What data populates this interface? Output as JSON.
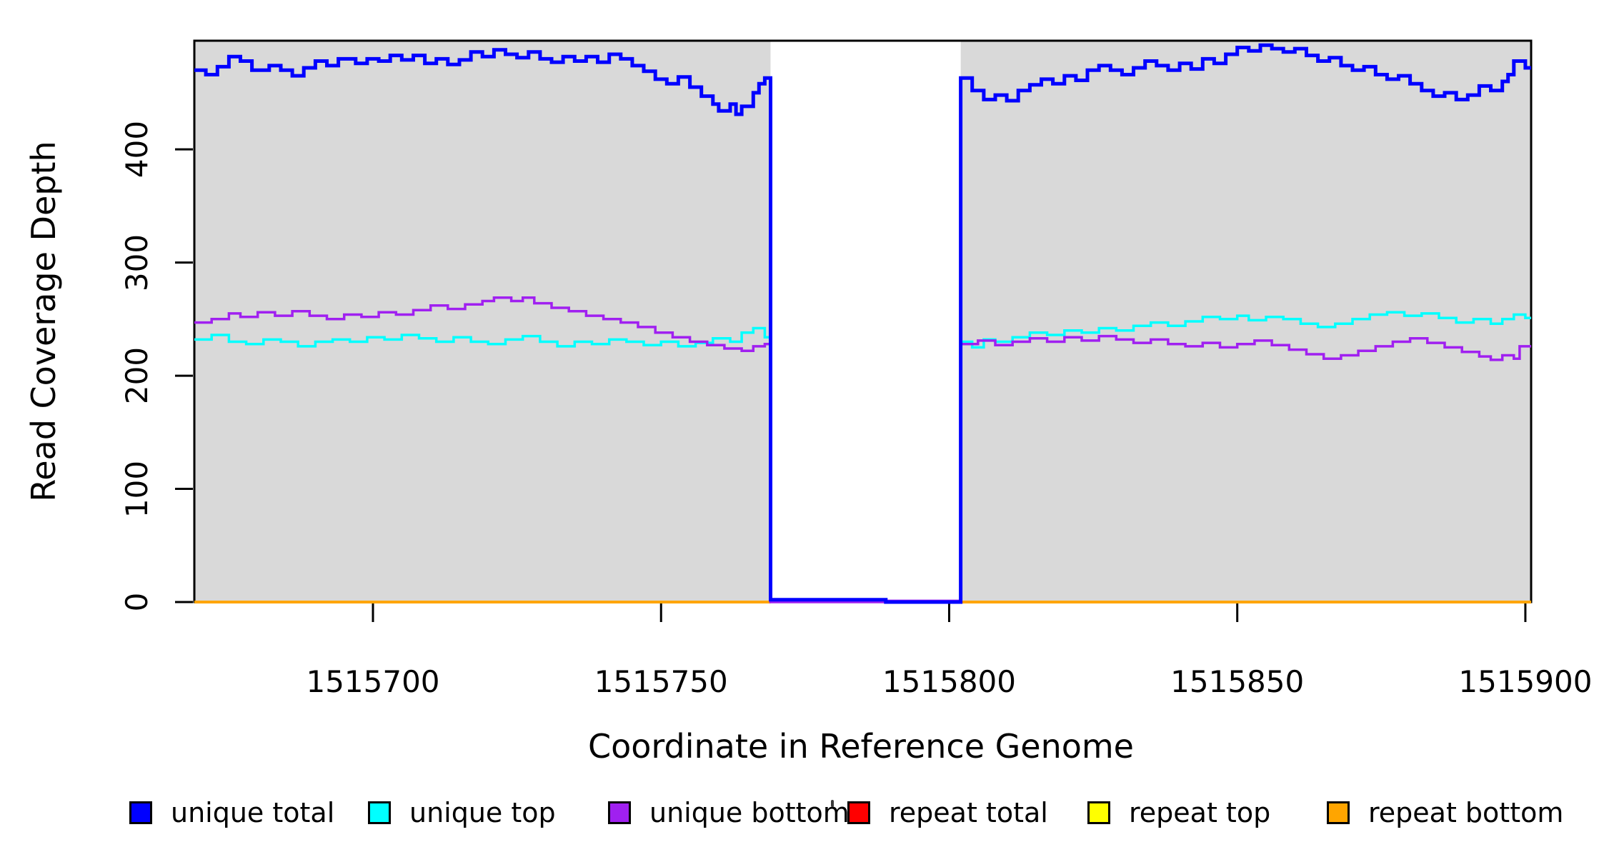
{
  "chart_data": {
    "type": "line",
    "line_style": "step",
    "title": "",
    "xlabel": "Coordinate in Reference Genome",
    "ylabel": "Read Coverage Depth",
    "xlim": [
      1515669,
      1515901
    ],
    "ylim": [
      0,
      496
    ],
    "xticks": [
      1515700,
      1515750,
      1515800,
      1515850,
      1515900
    ],
    "xtick_labels": [
      "1515700",
      "1515750",
      "1515800",
      "1515850",
      "1515900"
    ],
    "yticks": [
      0,
      100,
      200,
      300,
      400
    ],
    "ytick_labels": [
      "0",
      "100",
      "200",
      "300",
      "400"
    ],
    "grid": false,
    "legend_position": "bottom",
    "colors": {
      "panel_bg": "#d9d9d9",
      "gap_fill": "#ffffff",
      "box": "#000000",
      "unique_total": "#0000ff",
      "unique_top": "#00ffff",
      "unique_bottom": "#a020f0",
      "repeat_total": "#ff0000",
      "repeat_top": "#ffff00",
      "repeat_bottom": "#ffa500"
    },
    "panel_segments": [
      [
        1515669,
        1515769
      ],
      [
        1515802,
        1515901
      ]
    ],
    "gap": [
      1515769,
      1515802
    ],
    "legend": [
      {
        "label": "unique total",
        "color": "#0000ff"
      },
      {
        "label": "unique top",
        "color": "#00ffff"
      },
      {
        "label": "unique bottom",
        "color": "#a020f0"
      },
      {
        "label": "repeat total",
        "color": "#ff0000"
      },
      {
        "label": "repeat top",
        "color": "#ffff00"
      },
      {
        "label": "repeat bottom",
        "color": "#ffa500"
      }
    ],
    "series": [
      {
        "name": "unique total",
        "color": "#0000ff",
        "points": [
          [
            1515669,
            470
          ],
          [
            1515671,
            466
          ],
          [
            1515673,
            473
          ],
          [
            1515675,
            482
          ],
          [
            1515677,
            478
          ],
          [
            1515679,
            470
          ],
          [
            1515682,
            474
          ],
          [
            1515684,
            470
          ],
          [
            1515686,
            465
          ],
          [
            1515688,
            472
          ],
          [
            1515690,
            478
          ],
          [
            1515692,
            474
          ],
          [
            1515694,
            480
          ],
          [
            1515697,
            476
          ],
          [
            1515699,
            480
          ],
          [
            1515701,
            478
          ],
          [
            1515703,
            483
          ],
          [
            1515705,
            479
          ],
          [
            1515707,
            483
          ],
          [
            1515709,
            476
          ],
          [
            1515711,
            480
          ],
          [
            1515713,
            475
          ],
          [
            1515715,
            479
          ],
          [
            1515717,
            486
          ],
          [
            1515719,
            482
          ],
          [
            1515721,
            488
          ],
          [
            1515723,
            484
          ],
          [
            1515725,
            481
          ],
          [
            1515727,
            486
          ],
          [
            1515729,
            480
          ],
          [
            1515731,
            477
          ],
          [
            1515733,
            482
          ],
          [
            1515735,
            478
          ],
          [
            1515737,
            482
          ],
          [
            1515739,
            477
          ],
          [
            1515741,
            484
          ],
          [
            1515743,
            480
          ],
          [
            1515745,
            474
          ],
          [
            1515747,
            469
          ],
          [
            1515749,
            462
          ],
          [
            1515751,
            458
          ],
          [
            1515753,
            464
          ],
          [
            1515755,
            455
          ],
          [
            1515757,
            447
          ],
          [
            1515759,
            440
          ],
          [
            1515760,
            434
          ],
          [
            1515762,
            440
          ],
          [
            1515763,
            431
          ],
          [
            1515764,
            438
          ],
          [
            1515766,
            450
          ],
          [
            1515767,
            458
          ],
          [
            1515768,
            463
          ],
          [
            1515769,
            2
          ],
          [
            1515789,
            0
          ],
          [
            1515802,
            463
          ],
          [
            1515804,
            452
          ],
          [
            1515806,
            444
          ],
          [
            1515808,
            448
          ],
          [
            1515810,
            443
          ],
          [
            1515812,
            452
          ],
          [
            1515814,
            457
          ],
          [
            1515816,
            462
          ],
          [
            1515818,
            458
          ],
          [
            1515820,
            465
          ],
          [
            1515822,
            461
          ],
          [
            1515824,
            470
          ],
          [
            1515826,
            474
          ],
          [
            1515828,
            470
          ],
          [
            1515830,
            466
          ],
          [
            1515832,
            472
          ],
          [
            1515834,
            478
          ],
          [
            1515836,
            474
          ],
          [
            1515838,
            470
          ],
          [
            1515840,
            476
          ],
          [
            1515842,
            471
          ],
          [
            1515844,
            480
          ],
          [
            1515846,
            476
          ],
          [
            1515848,
            484
          ],
          [
            1515850,
            490
          ],
          [
            1515852,
            487
          ],
          [
            1515854,
            492
          ],
          [
            1515856,
            489
          ],
          [
            1515858,
            486
          ],
          [
            1515860,
            489
          ],
          [
            1515862,
            483
          ],
          [
            1515864,
            478
          ],
          [
            1515866,
            481
          ],
          [
            1515868,
            474
          ],
          [
            1515870,
            470
          ],
          [
            1515872,
            473
          ],
          [
            1515874,
            466
          ],
          [
            1515876,
            462
          ],
          [
            1515878,
            465
          ],
          [
            1515880,
            458
          ],
          [
            1515882,
            452
          ],
          [
            1515884,
            447
          ],
          [
            1515886,
            450
          ],
          [
            1515888,
            444
          ],
          [
            1515890,
            448
          ],
          [
            1515892,
            456
          ],
          [
            1515894,
            452
          ],
          [
            1515896,
            460
          ],
          [
            1515897,
            466
          ],
          [
            1515898,
            478
          ],
          [
            1515900,
            472
          ]
        ]
      },
      {
        "name": "unique top",
        "color": "#00ffff",
        "points": [
          [
            1515669,
            232
          ],
          [
            1515672,
            236
          ],
          [
            1515675,
            230
          ],
          [
            1515678,
            228
          ],
          [
            1515681,
            232
          ],
          [
            1515684,
            230
          ],
          [
            1515687,
            226
          ],
          [
            1515690,
            230
          ],
          [
            1515693,
            232
          ],
          [
            1515696,
            230
          ],
          [
            1515699,
            234
          ],
          [
            1515702,
            232
          ],
          [
            1515705,
            236
          ],
          [
            1515708,
            233
          ],
          [
            1515711,
            230
          ],
          [
            1515714,
            234
          ],
          [
            1515717,
            230
          ],
          [
            1515720,
            228
          ],
          [
            1515723,
            232
          ],
          [
            1515726,
            235
          ],
          [
            1515729,
            230
          ],
          [
            1515732,
            226
          ],
          [
            1515735,
            230
          ],
          [
            1515738,
            228
          ],
          [
            1515741,
            232
          ],
          [
            1515744,
            230
          ],
          [
            1515747,
            227
          ],
          [
            1515750,
            230
          ],
          [
            1515753,
            226
          ],
          [
            1515756,
            229
          ],
          [
            1515759,
            233
          ],
          [
            1515762,
            230
          ],
          [
            1515764,
            238
          ],
          [
            1515766,
            242
          ],
          [
            1515768,
            234
          ],
          [
            1515769,
            1
          ],
          [
            1515789,
            0
          ],
          [
            1515802,
            230
          ],
          [
            1515804,
            225
          ],
          [
            1515806,
            232
          ],
          [
            1515808,
            230
          ],
          [
            1515811,
            234
          ],
          [
            1515814,
            238
          ],
          [
            1515817,
            236
          ],
          [
            1515820,
            240
          ],
          [
            1515823,
            238
          ],
          [
            1515826,
            242
          ],
          [
            1515829,
            240
          ],
          [
            1515832,
            244
          ],
          [
            1515835,
            247
          ],
          [
            1515838,
            244
          ],
          [
            1515841,
            248
          ],
          [
            1515844,
            252
          ],
          [
            1515847,
            250
          ],
          [
            1515850,
            253
          ],
          [
            1515852,
            249
          ],
          [
            1515855,
            252
          ],
          [
            1515858,
            250
          ],
          [
            1515861,
            246
          ],
          [
            1515864,
            243
          ],
          [
            1515867,
            246
          ],
          [
            1515870,
            250
          ],
          [
            1515873,
            254
          ],
          [
            1515876,
            256
          ],
          [
            1515879,
            253
          ],
          [
            1515882,
            255
          ],
          [
            1515885,
            251
          ],
          [
            1515888,
            247
          ],
          [
            1515891,
            250
          ],
          [
            1515894,
            246
          ],
          [
            1515896,
            250
          ],
          [
            1515898,
            254
          ],
          [
            1515900,
            251
          ]
        ]
      },
      {
        "name": "unique bottom",
        "color": "#a020f0",
        "points": [
          [
            1515669,
            247
          ],
          [
            1515672,
            250
          ],
          [
            1515675,
            255
          ],
          [
            1515677,
            252
          ],
          [
            1515680,
            256
          ],
          [
            1515683,
            253
          ],
          [
            1515686,
            257
          ],
          [
            1515689,
            253
          ],
          [
            1515692,
            250
          ],
          [
            1515695,
            254
          ],
          [
            1515698,
            252
          ],
          [
            1515701,
            256
          ],
          [
            1515704,
            254
          ],
          [
            1515707,
            258
          ],
          [
            1515710,
            262
          ],
          [
            1515713,
            259
          ],
          [
            1515716,
            263
          ],
          [
            1515719,
            266
          ],
          [
            1515721,
            269
          ],
          [
            1515724,
            266
          ],
          [
            1515726,
            269
          ],
          [
            1515728,
            264
          ],
          [
            1515731,
            260
          ],
          [
            1515734,
            257
          ],
          [
            1515737,
            253
          ],
          [
            1515740,
            250
          ],
          [
            1515743,
            247
          ],
          [
            1515746,
            243
          ],
          [
            1515749,
            238
          ],
          [
            1515752,
            234
          ],
          [
            1515755,
            230
          ],
          [
            1515758,
            227
          ],
          [
            1515761,
            224
          ],
          [
            1515764,
            222
          ],
          [
            1515766,
            226
          ],
          [
            1515768,
            228
          ],
          [
            1515769,
            0
          ],
          [
            1515789,
            1
          ],
          [
            1515802,
            228
          ],
          [
            1515805,
            231
          ],
          [
            1515808,
            227
          ],
          [
            1515811,
            230
          ],
          [
            1515814,
            233
          ],
          [
            1515817,
            230
          ],
          [
            1515820,
            234
          ],
          [
            1515823,
            231
          ],
          [
            1515826,
            235
          ],
          [
            1515829,
            232
          ],
          [
            1515832,
            229
          ],
          [
            1515835,
            232
          ],
          [
            1515838,
            228
          ],
          [
            1515841,
            226
          ],
          [
            1515844,
            229
          ],
          [
            1515847,
            225
          ],
          [
            1515850,
            228
          ],
          [
            1515853,
            231
          ],
          [
            1515856,
            227
          ],
          [
            1515859,
            223
          ],
          [
            1515862,
            219
          ],
          [
            1515865,
            215
          ],
          [
            1515868,
            218
          ],
          [
            1515871,
            222
          ],
          [
            1515874,
            226
          ],
          [
            1515877,
            230
          ],
          [
            1515880,
            233
          ],
          [
            1515883,
            229
          ],
          [
            1515886,
            225
          ],
          [
            1515889,
            221
          ],
          [
            1515892,
            217
          ],
          [
            1515894,
            214
          ],
          [
            1515896,
            218
          ],
          [
            1515898,
            215
          ],
          [
            1515899,
            226
          ]
        ]
      },
      {
        "name": "repeat total",
        "color": "#ff0000",
        "segments": [
          [
            [
              1515669,
              0
            ],
            [
              1515769,
              0
            ]
          ],
          [
            [
              1515802,
              0
            ],
            [
              1515901,
              0
            ]
          ]
        ]
      },
      {
        "name": "repeat top",
        "color": "#ffff00",
        "segments": [
          [
            [
              1515669,
              0
            ],
            [
              1515769,
              0
            ]
          ],
          [
            [
              1515802,
              0
            ],
            [
              1515901,
              0
            ]
          ]
        ]
      },
      {
        "name": "repeat bottom",
        "color": "#ffa500",
        "segments": [
          [
            [
              1515669,
              0
            ],
            [
              1515769,
              0
            ]
          ],
          [
            [
              1515802,
              0
            ],
            [
              1515901,
              0
            ]
          ]
        ]
      }
    ]
  }
}
